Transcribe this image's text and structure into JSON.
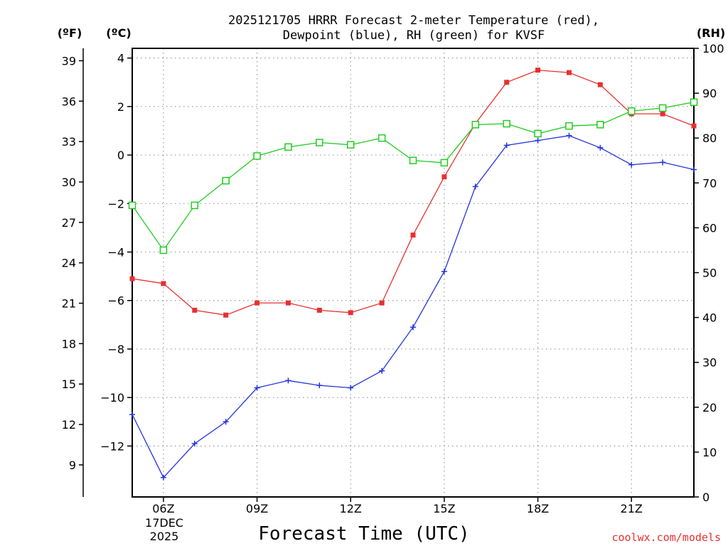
{
  "chart_data": {
    "type": "line",
    "title_line1": "2025121705 HRRR Forecast 2-meter Temperature (red),",
    "title_line2": "Dewpoint (blue), RH (green) for KVSF",
    "xlabel": "Forecast Time (UTC)",
    "date_line1": "17DEC",
    "date_line2": "2025",
    "credit": "coolwx.com/models",
    "unit_f": "(ºF)",
    "unit_c": "(ºC)",
    "unit_rh": "(RH)",
    "x_hours": [
      5,
      6,
      7,
      8,
      9,
      10,
      11,
      12,
      13,
      14,
      15,
      16,
      17,
      18,
      19,
      20,
      21,
      22,
      23
    ],
    "x_range": [
      5,
      23
    ],
    "x_ticks": [
      {
        "hour": 6,
        "label": "06Z"
      },
      {
        "hour": 9,
        "label": "09Z"
      },
      {
        "hour": 12,
        "label": "12Z"
      },
      {
        "hour": 15,
        "label": "15Z"
      },
      {
        "hour": 18,
        "label": "18Z"
      },
      {
        "hour": 21,
        "label": "21Z"
      }
    ],
    "ylim_c": [
      -14.1,
      4.4
    ],
    "ylim_rh": [
      0,
      100
    ],
    "c_ticks": [
      4,
      2,
      0,
      -2,
      -4,
      -6,
      -8,
      -10,
      -12
    ],
    "f_ticks": [
      39,
      36,
      33,
      30,
      27,
      24,
      21,
      18,
      15,
      12,
      9
    ],
    "rh_ticks": [
      100,
      90,
      80,
      70,
      60,
      50,
      40,
      30,
      20,
      10,
      0
    ],
    "colors": {
      "temperature": "#e83030",
      "dewpoint": "#2233dd",
      "rh": "#22cc22",
      "grid": "#999999"
    },
    "series": [
      {
        "name": "Temperature (°C)",
        "axis": "c",
        "color": "#e83030",
        "marker": "filled-square",
        "values": [
          -5.1,
          -5.3,
          -6.4,
          -6.6,
          -6.1,
          -6.1,
          -6.4,
          -6.5,
          -6.1,
          -3.3,
          -0.9,
          1.3,
          3.0,
          3.5,
          3.4,
          2.9,
          1.7,
          1.7,
          1.2
        ]
      },
      {
        "name": "Dewpoint (°C)",
        "axis": "c",
        "color": "#2233dd",
        "marker": "plus",
        "values": [
          -10.7,
          -13.3,
          -11.9,
          -11.0,
          -9.6,
          -9.3,
          -9.5,
          -9.6,
          -8.9,
          -7.1,
          -4.8,
          -1.3,
          0.4,
          0.6,
          0.8,
          0.3,
          -0.4,
          -0.3,
          -0.6
        ]
      },
      {
        "name": "RH (%)",
        "axis": "rh",
        "color": "#22cc22",
        "marker": "open-square",
        "values": [
          65,
          55,
          65,
          70.5,
          76,
          78,
          79,
          78.5,
          80,
          75,
          74.5,
          83,
          83.2,
          81,
          82.7,
          83,
          86,
          86.7,
          88
        ]
      }
    ]
  }
}
